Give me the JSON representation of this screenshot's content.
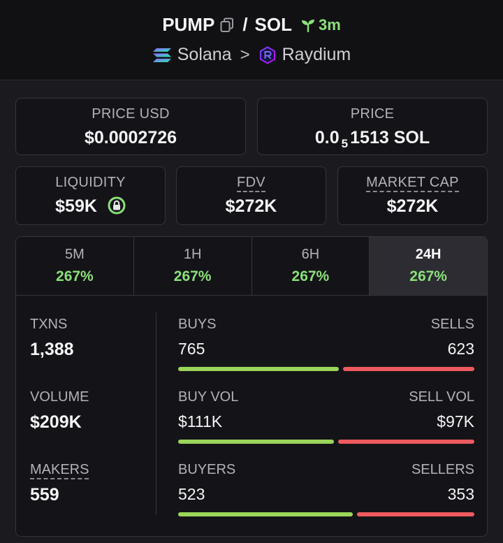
{
  "header": {
    "base": "PUMP",
    "slash": "/",
    "quote": "SOL",
    "age": "3m",
    "chain": "Solana",
    "chevron": ">",
    "dex": "Raydium"
  },
  "cards": {
    "price_usd": {
      "label": "PRICE USD",
      "value": "$0.0002726"
    },
    "price": {
      "label": "PRICE",
      "value_lead": "0.0",
      "value_sub": "5",
      "value_tail": "1513 SOL"
    },
    "liquidity": {
      "label": "LIQUIDITY",
      "value": "$59K"
    },
    "fdv": {
      "label": "FDV",
      "value": "$272K"
    },
    "market_cap": {
      "label": "MARKET CAP",
      "value": "$272K"
    }
  },
  "tabs": [
    {
      "label": "5M",
      "value": "267%"
    },
    {
      "label": "1H",
      "value": "267%"
    },
    {
      "label": "6H",
      "value": "267%"
    },
    {
      "label": "24H",
      "value": "267%"
    }
  ],
  "active_tab": "24H",
  "stats": {
    "txns": {
      "label": "TXNS",
      "value": "1,388"
    },
    "volume": {
      "label": "VOLUME",
      "value": "$209K"
    },
    "makers": {
      "label": "MAKERS",
      "value": "559"
    }
  },
  "ratios": {
    "txns": {
      "left_label": "BUYS",
      "right_label": "SELLS",
      "left_value": "765",
      "right_value": "623",
      "left_fraction": 0.551
    },
    "volume": {
      "left_label": "BUY VOL",
      "right_label": "SELL VOL",
      "left_value": "$111K",
      "right_value": "$97K",
      "left_fraction": 0.534
    },
    "makers": {
      "left_label": "BUYERS",
      "right_label": "SELLERS",
      "left_value": "523",
      "right_value": "353",
      "left_fraction": 0.597
    }
  },
  "colors": {
    "positive": "#8be07a",
    "buy_bar": "#9bd65a",
    "sell_bar": "#ee5a5f",
    "background": "#1b1b1f",
    "card": "#141418"
  },
  "icons": {
    "copy": "copy-icon",
    "age": "sprout-icon",
    "chain": "solana-icon",
    "dex": "raydium-icon",
    "lock": "lock-icon"
  }
}
